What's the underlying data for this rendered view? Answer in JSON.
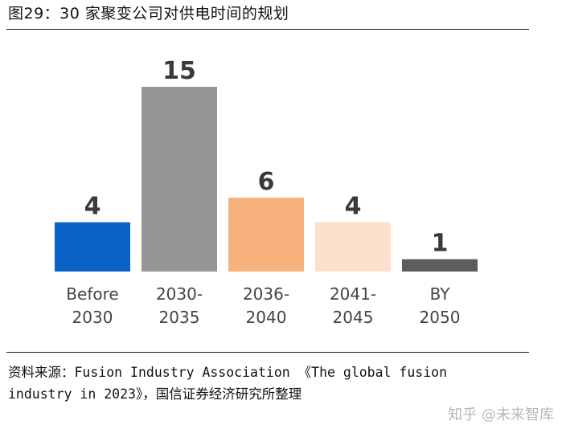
{
  "figure": {
    "title": "图29：30 家聚变公司对供电时间的规划",
    "source_line1": "资料来源：Fusion Industry Association 《The global fusion",
    "source_line2": "industry in 2023》，国信证券经济研究所整理",
    "watermark": "知乎 @未来智库"
  },
  "chart_data": {
    "type": "bar",
    "title": "",
    "xlabel": "",
    "ylabel": "",
    "categories": [
      "Before 2030",
      "2030-2035",
      "2036-2040",
      "2041-2045",
      "BY 2050"
    ],
    "category_lines": [
      [
        "Before",
        "2030"
      ],
      [
        "2030-",
        "2035"
      ],
      [
        "2036-",
        "2040"
      ],
      [
        "2041-",
        "2045"
      ],
      [
        "BY",
        "2050"
      ]
    ],
    "values": [
      4,
      15,
      6,
      4,
      1
    ],
    "colors": [
      "#0A62C7",
      "#969696",
      "#F7B27E",
      "#FCE0CB",
      "#5C5C5C"
    ],
    "ylim": [
      0,
      15
    ],
    "grid": false,
    "legend": "none"
  }
}
